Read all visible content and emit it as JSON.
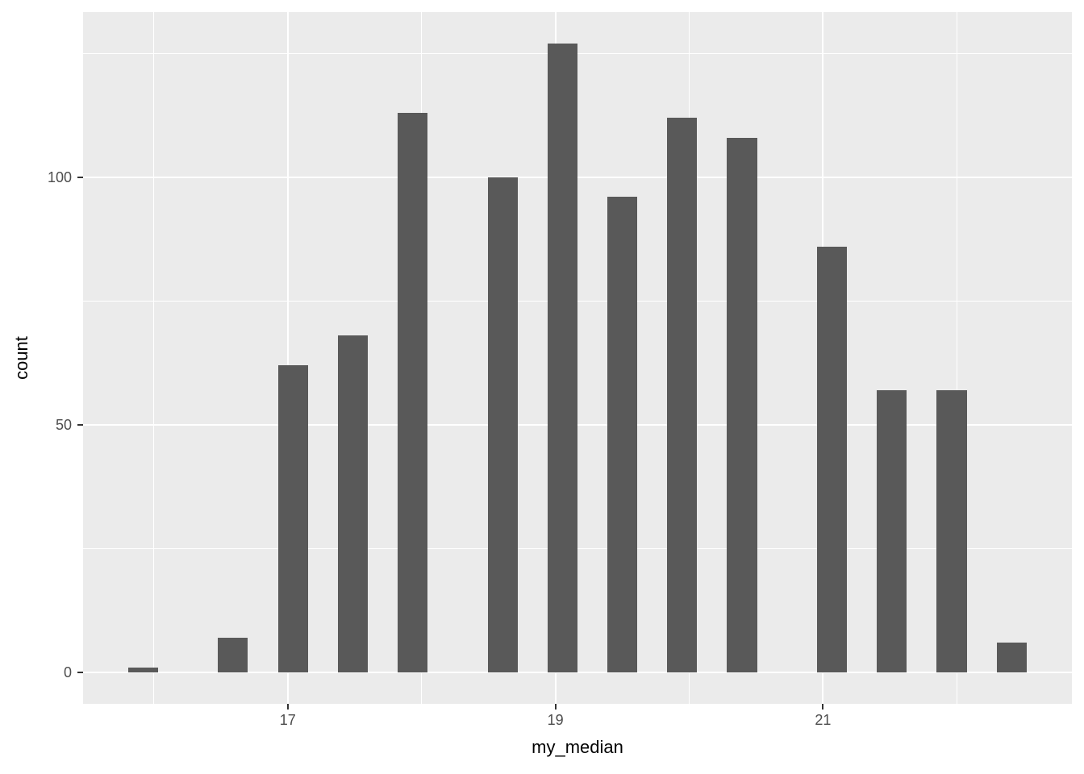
{
  "chart_data": {
    "type": "bar",
    "subtype": "histogram",
    "title": "",
    "xlabel": "my_median",
    "ylabel": "count",
    "legend": "none",
    "grid": true,
    "panel_bg": "#EBEBEB",
    "grid_color": "#FFFFFF",
    "bar_fill": "#595959",
    "axis_text_color": "#4D4D4D",
    "axis_title_color": "#000000",
    "tick_color": "#333333",
    "xlim": [
      15.47,
      22.86
    ],
    "ylim": [
      -6.35,
      133.35
    ],
    "binwidth": 0.2238,
    "bars": [
      {
        "x": 15.919,
        "count": 1
      },
      {
        "x": 16.59,
        "count": 7
      },
      {
        "x": 17.038,
        "count": 62
      },
      {
        "x": 17.486,
        "count": 68
      },
      {
        "x": 17.933,
        "count": 113
      },
      {
        "x": 18.605,
        "count": 100
      },
      {
        "x": 19.052,
        "count": 127
      },
      {
        "x": 19.5,
        "count": 96
      },
      {
        "x": 19.948,
        "count": 112
      },
      {
        "x": 20.395,
        "count": 108
      },
      {
        "x": 21.067,
        "count": 86
      },
      {
        "x": 21.514,
        "count": 57
      },
      {
        "x": 21.962,
        "count": 57
      },
      {
        "x": 22.41,
        "count": 6
      }
    ],
    "x_ticks": [
      {
        "value": 17,
        "label": "17"
      },
      {
        "value": 19,
        "label": "19"
      },
      {
        "value": 21,
        "label": "21"
      }
    ],
    "y_ticks": [
      {
        "value": 0,
        "label": "0"
      },
      {
        "value": 50,
        "label": "50"
      },
      {
        "value": 100,
        "label": "100"
      }
    ],
    "x_minor_gridlines": [
      16,
      18,
      20,
      22
    ],
    "y_minor_gridlines": [
      25,
      75,
      125
    ]
  }
}
